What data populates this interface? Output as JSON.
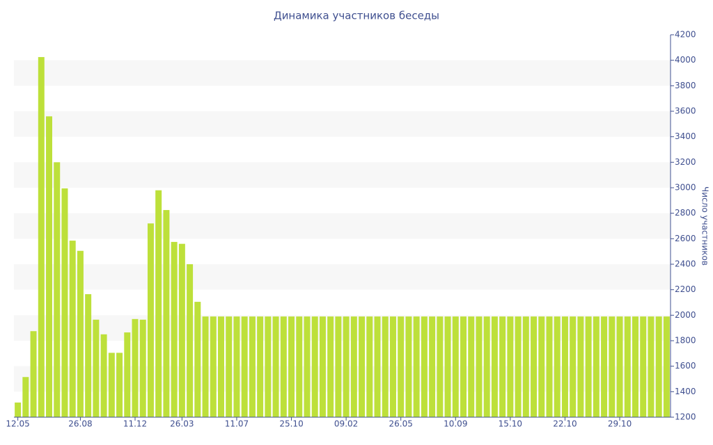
{
  "chart_data": {
    "type": "bar",
    "title": "Динамика участников беседы",
    "y_axis_label": "Число участников",
    "categories": [
      "12.05",
      null,
      null,
      null,
      null,
      null,
      null,
      null,
      "26.08",
      null,
      null,
      null,
      null,
      null,
      null,
      "11.12",
      null,
      null,
      null,
      null,
      null,
      "26.03",
      null,
      null,
      null,
      null,
      null,
      null,
      "11.07",
      null,
      null,
      null,
      null,
      null,
      null,
      "25.10",
      null,
      null,
      null,
      null,
      null,
      null,
      "09.02",
      null,
      null,
      null,
      null,
      null,
      null,
      "26.05",
      null,
      null,
      null,
      null,
      null,
      null,
      "10.09",
      null,
      null,
      null,
      null,
      null,
      null,
      "15.10",
      null,
      null,
      null,
      null,
      null,
      null,
      "22.10",
      null,
      null,
      null,
      null,
      null,
      null,
      "29.10",
      null,
      null,
      null,
      null,
      null,
      null
    ],
    "values": [
      1315,
      1515,
      1875,
      4025,
      3560,
      3200,
      2995,
      2585,
      2505,
      2165,
      1965,
      1850,
      1705,
      1705,
      1865,
      1970,
      1965,
      2720,
      2980,
      2825,
      2575,
      2560,
      2400,
      2105,
      1990,
      1990,
      1990,
      1990,
      1990,
      1990,
      1990,
      1990,
      1990,
      1990,
      1990,
      1990,
      1990,
      1990,
      1990,
      1990,
      1990,
      1990,
      1990,
      1990,
      1990,
      1990,
      1990,
      1990,
      1990,
      1990,
      1990,
      1990,
      1990,
      1990,
      1990,
      1990,
      1990,
      1990,
      1990,
      1990,
      1990,
      1990,
      1990,
      1990,
      1990,
      1990,
      1990,
      1990,
      1990,
      1990,
      1990,
      1990,
      1990,
      1990,
      1990,
      1990,
      1990,
      1990,
      1990,
      1990,
      1990,
      1990,
      1990,
      1990
    ],
    "color": "#bde03a",
    "ylim": [
      1200,
      4200
    ],
    "yticks": [
      1200,
      1400,
      1600,
      1800,
      2000,
      2200,
      2400,
      2600,
      2800,
      3000,
      3200,
      3400,
      3600,
      3800,
      4000,
      4200
    ],
    "y_axis_side": "right",
    "banded_grid": true
  }
}
